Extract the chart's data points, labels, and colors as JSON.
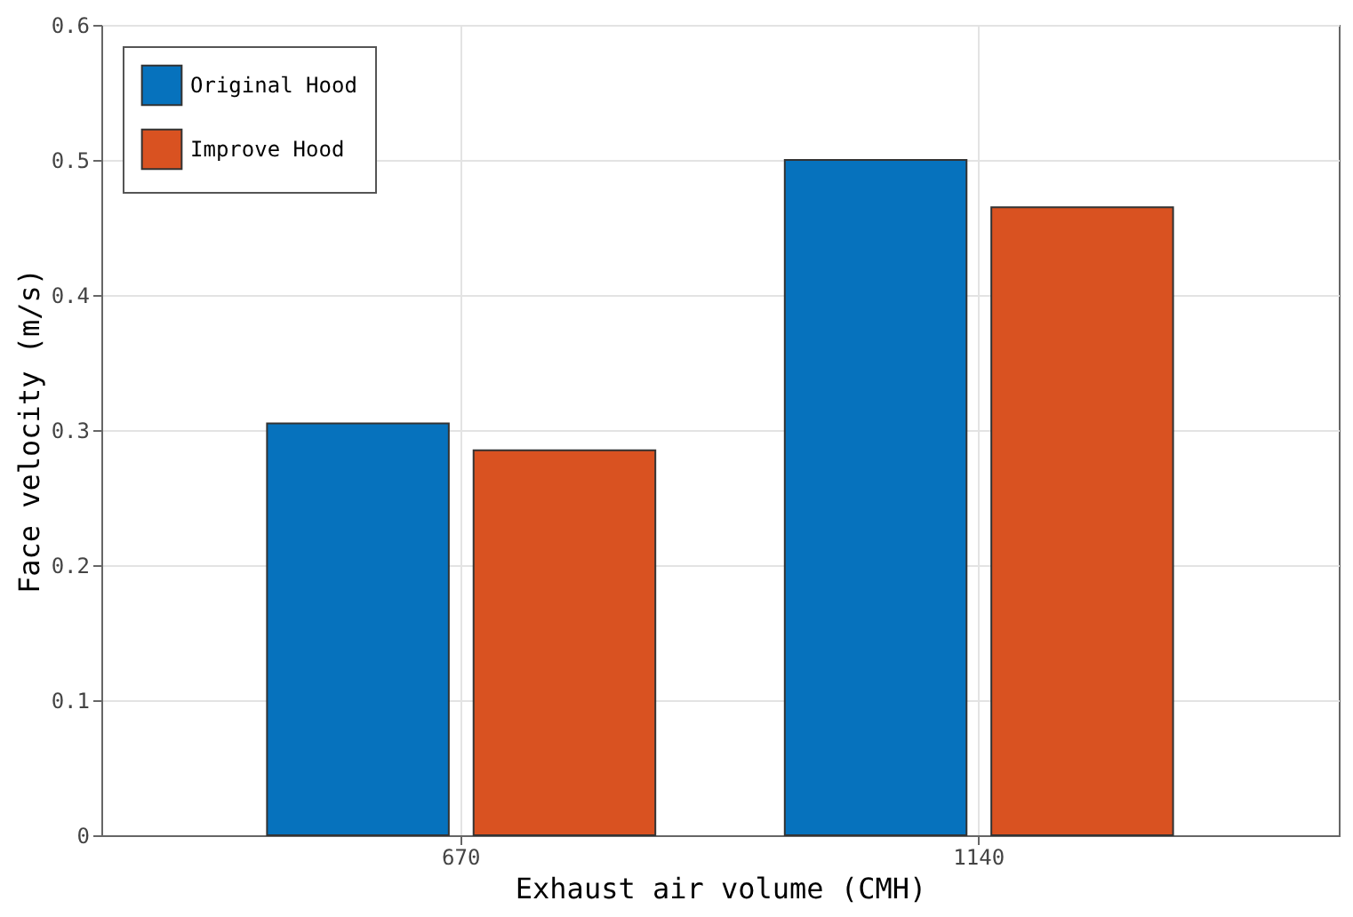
{
  "chart_data": {
    "type": "bar",
    "xlabel": "Exhaust air volume (CMH)",
    "ylabel": "Face velocity (m/s)",
    "categories": [
      "670",
      "1140"
    ],
    "series": [
      {
        "name": "Original Hood",
        "color": "#0672bd",
        "values": [
          0.305,
          0.5
        ]
      },
      {
        "name": "Improve Hood",
        "color": "#d95221",
        "values": [
          0.285,
          0.465
        ]
      }
    ],
    "ylim": [
      0,
      0.6
    ],
    "yticks": [
      0,
      0.1,
      0.2,
      0.3,
      0.4,
      0.5,
      0.6
    ],
    "grid": true,
    "legend": "top left"
  }
}
